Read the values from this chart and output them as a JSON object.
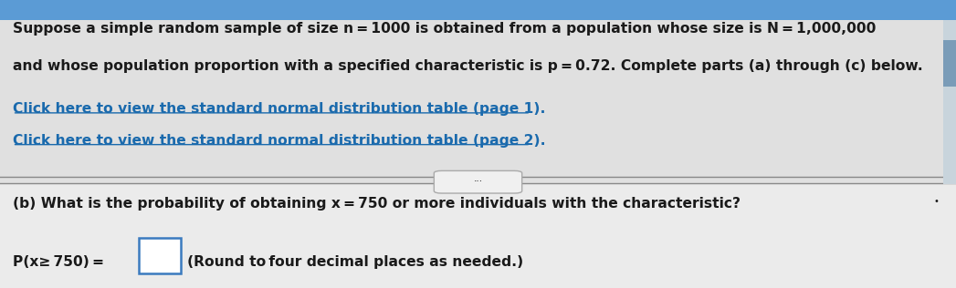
{
  "bg_color_top": "#5b9bd5",
  "bg_color_main": "#e0e0e0",
  "bg_color_bottom": "#ebebeb",
  "line_color": "#888888",
  "text_color_black": "#1a1a1a",
  "link_color": "#1a6aad",
  "scrollbar_color": "#7a9cb8",
  "top_text_line1": "Suppose a simple random sample of size n = 1000 is obtained from a population whose size is N = 1,000,000",
  "top_text_line2": "and whose population proportion with a specified characteristic is p = 0.72. Complete parts (a) through (c) below.",
  "link1": "Click here to view the standard normal distribution table (page 1).",
  "link2": "Click here to view the standard normal distribution table (page 2).",
  "divider_text": "...",
  "question_text": "(b) What is the probability of obtaining x = 750 or more individuals with the characteristic?",
  "answer_label": "P(x≥ 750) =",
  "answer_suffix": "(Round to four decimal places as needed.)",
  "small_dot": "•"
}
